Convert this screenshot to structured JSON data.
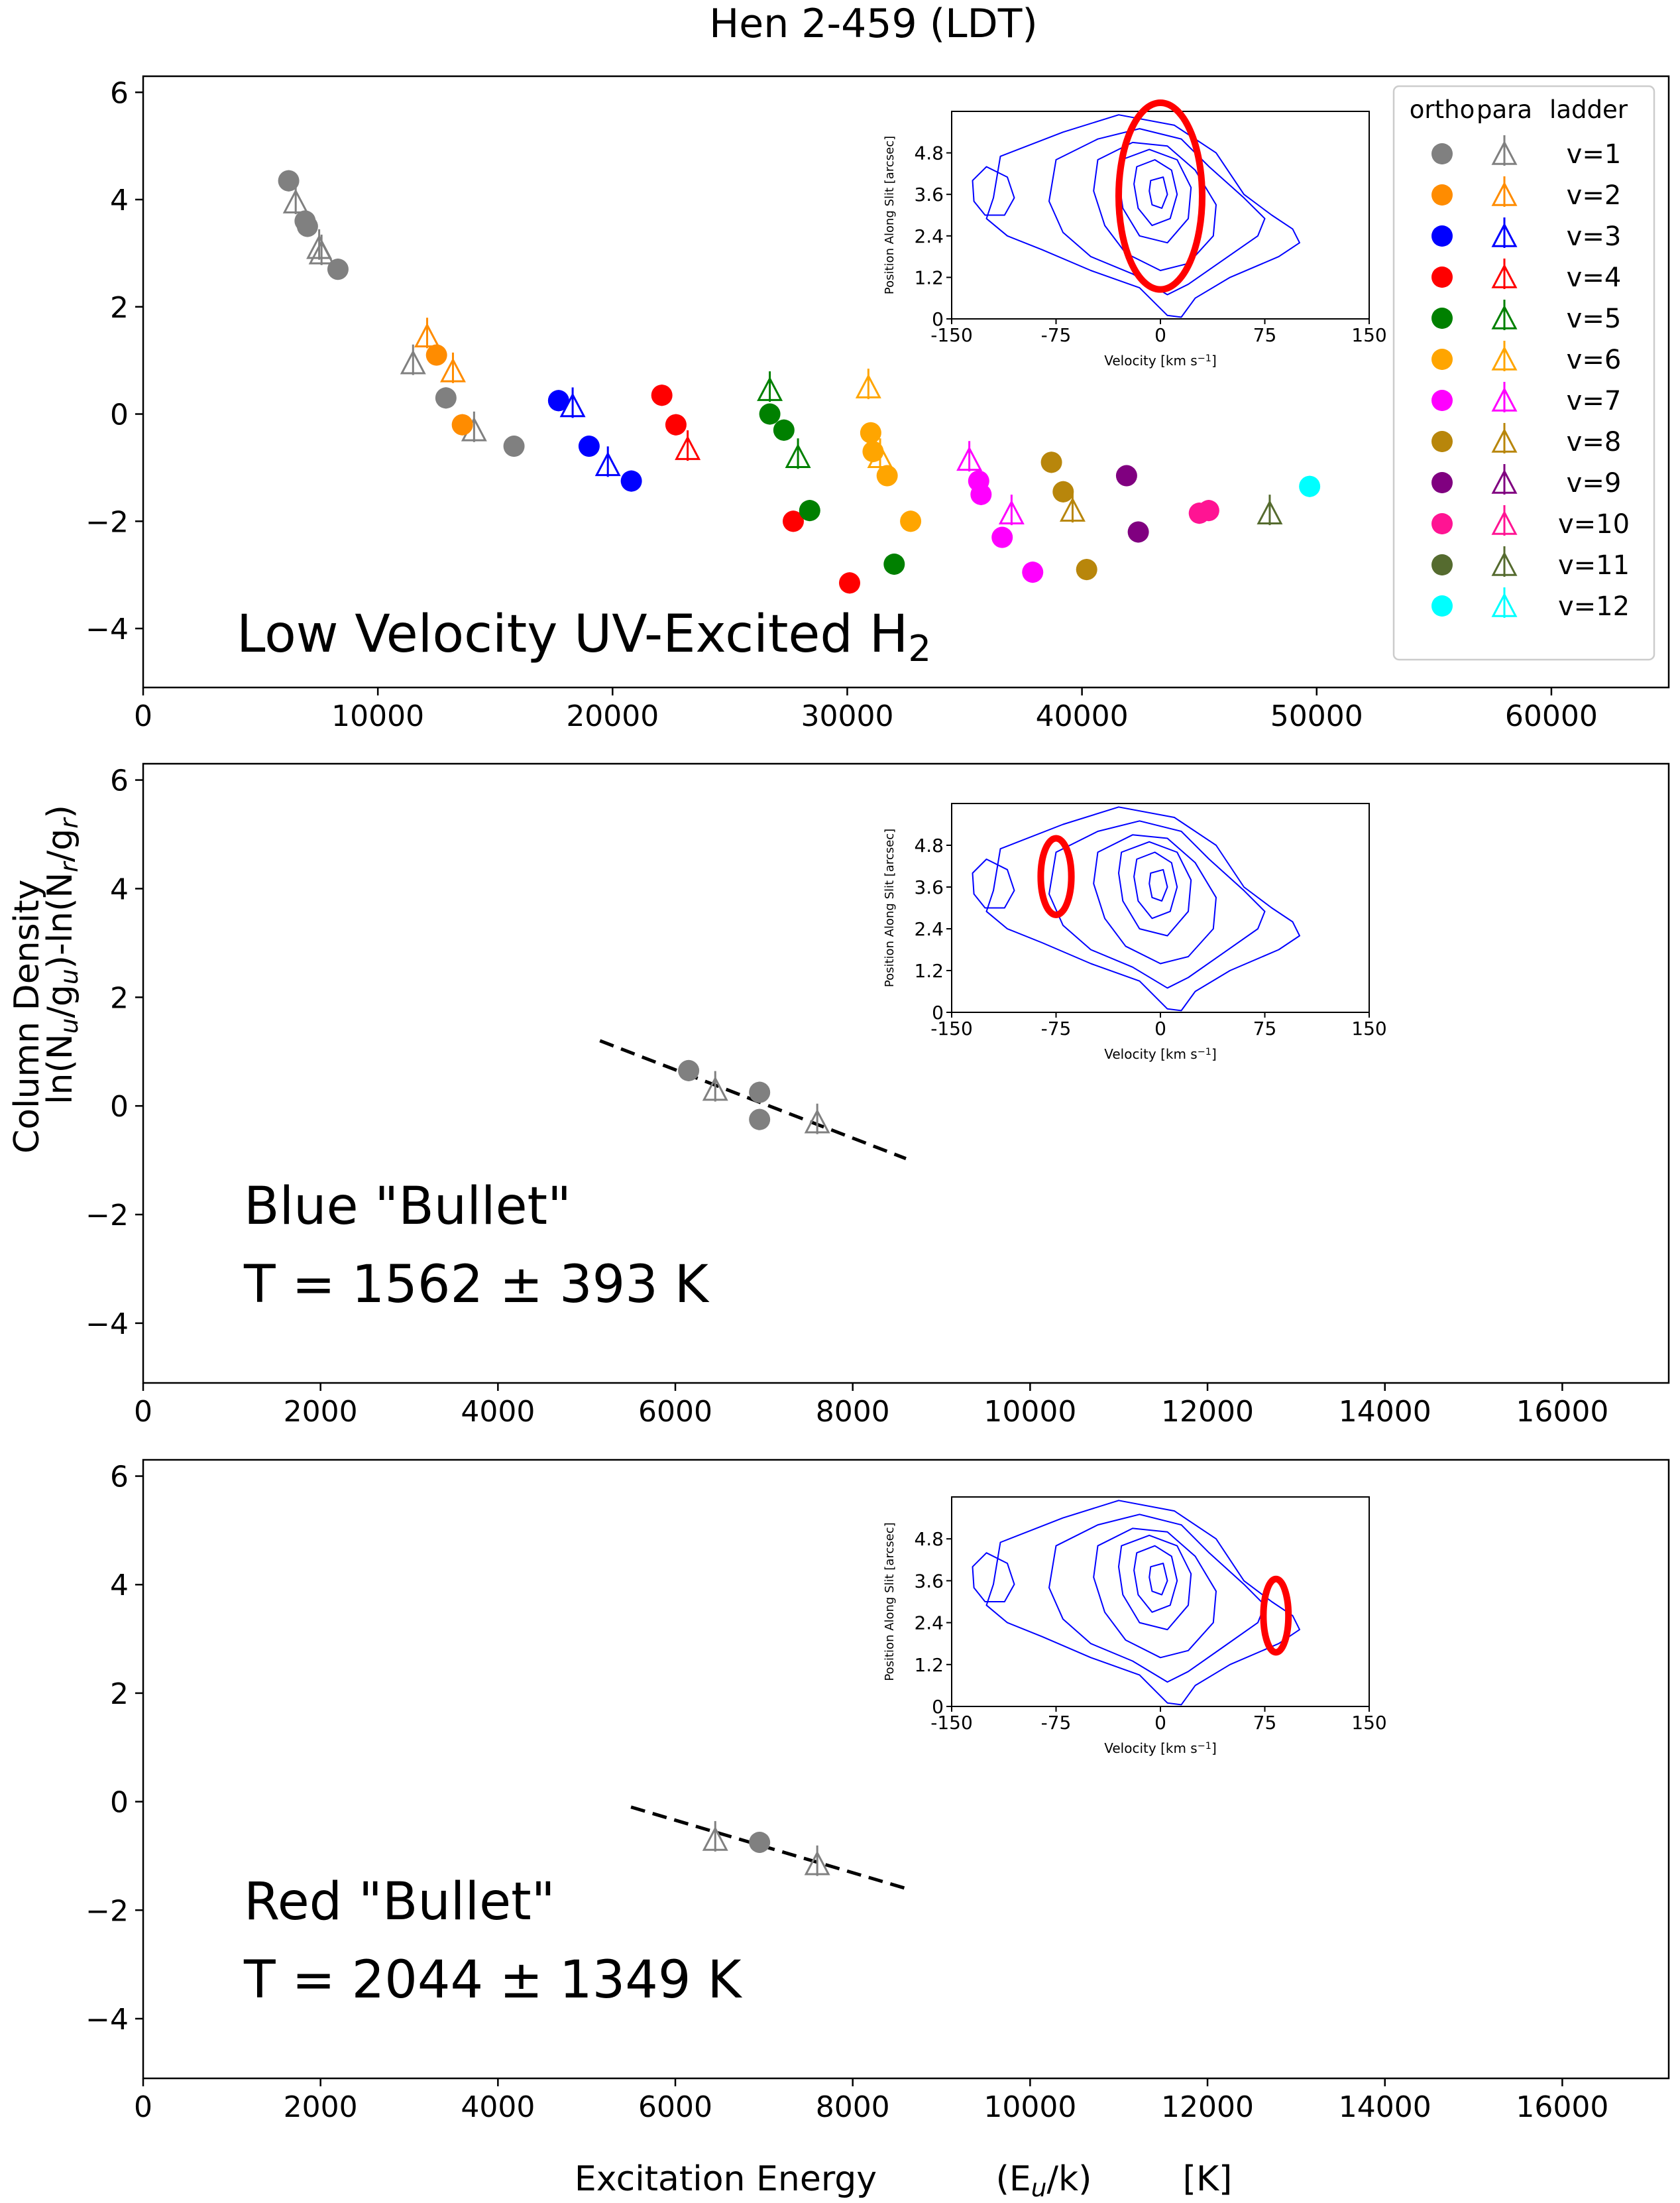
{
  "figure": {
    "title": "Hen 2-459 (LDT)",
    "ylabel_line1": "Column Density",
    "ylabel_line2": "ln(N_u/g_u)-ln(N_r/g_r)",
    "xlabel": "Excitation Energy",
    "xlabel_units": "(E_u/k)",
    "xlabel_unit_k": "[K]"
  },
  "colors": {
    "v1": "#808080",
    "v2": "#ff8c00",
    "v3": "#0000ff",
    "v4": "#ff0000",
    "v5": "#008000",
    "v6": "#ffa500",
    "v7": "#ff00ff",
    "v8": "#b8860b",
    "v9": "#800080",
    "v10": "#ff1493",
    "v11": "#556b2f",
    "v12": "#00ffff",
    "contour": "#0000ff",
    "ellipse": "#ff0000",
    "fit": "#000000"
  },
  "legend": {
    "headers": [
      "ortho",
      "para",
      "ladder"
    ],
    "entries": [
      {
        "label": "v=1",
        "color": "#808080"
      },
      {
        "label": "v=2",
        "color": "#ff8c00"
      },
      {
        "label": "v=3",
        "color": "#0000ff"
      },
      {
        "label": "v=4",
        "color": "#ff0000"
      },
      {
        "label": "v=5",
        "color": "#008000"
      },
      {
        "label": "v=6",
        "color": "#ffa500"
      },
      {
        "label": "v=7",
        "color": "#ff00ff"
      },
      {
        "label": "v=8",
        "color": "#b8860b"
      },
      {
        "label": "v=9",
        "color": "#800080"
      },
      {
        "label": "v=10",
        "color": "#ff1493"
      },
      {
        "label": "v=11",
        "color": "#556b2f"
      },
      {
        "label": "v=12",
        "color": "#00ffff"
      }
    ]
  },
  "inset": {
    "xlabel": "Velocity [km s^-1]",
    "ylabel": "Position Along Slit [arcsec]",
    "xticks": [
      -150,
      -75,
      0,
      75,
      150
    ],
    "xtick_labels": [
      "-150",
      "-75",
      "0",
      "75",
      "150"
    ],
    "yticks": [
      0,
      1.2,
      2.4,
      3.6,
      4.8
    ],
    "ytick_labels": [
      "0",
      "1.2",
      "2.4",
      "3.6",
      "4.8"
    ],
    "xlim": [
      -150,
      150
    ],
    "ylim": [
      0,
      6.0
    ]
  },
  "chart_data": [
    {
      "type": "scatter",
      "panel": "top",
      "annotation": "Low Velocity UV-Excited H2",
      "xlim": [
        0,
        65000
      ],
      "ylim": [
        -5.1,
        6.3
      ],
      "xticks": [
        0,
        10000,
        20000,
        30000,
        40000,
        50000,
        60000
      ],
      "xtick_labels": [
        "0",
        "10000",
        "20000",
        "30000",
        "40000",
        "50000",
        "60000"
      ],
      "yticks": [
        -4,
        -2,
        0,
        2,
        4,
        6
      ],
      "ytick_labels": [
        "−4",
        "−2",
        "0",
        "2",
        "4",
        "6"
      ],
      "ellipse": {
        "vel": 0,
        "pos": 3.55,
        "vel_radius": 30,
        "pos_radius": 2.7
      },
      "points": [
        {
          "x": 6200,
          "y": 4.35,
          "v": 1,
          "kind": "ortho"
        },
        {
          "x": 6500,
          "y": 3.95,
          "v": 1,
          "kind": "para"
        },
        {
          "x": 6900,
          "y": 3.6,
          "v": 1,
          "kind": "ortho"
        },
        {
          "x": 7000,
          "y": 3.5,
          "v": 1,
          "kind": "ortho"
        },
        {
          "x": 7500,
          "y": 3.1,
          "v": 1,
          "kind": "para"
        },
        {
          "x": 7600,
          "y": 3.0,
          "v": 1,
          "kind": "para"
        },
        {
          "x": 8300,
          "y": 2.7,
          "v": 1,
          "kind": "ortho"
        },
        {
          "x": 11500,
          "y": 0.95,
          "v": 1,
          "kind": "para"
        },
        {
          "x": 12900,
          "y": 0.3,
          "v": 1,
          "kind": "ortho"
        },
        {
          "x": 14100,
          "y": -0.3,
          "v": 1,
          "kind": "para"
        },
        {
          "x": 15800,
          "y": -0.6,
          "v": 1,
          "kind": "ortho"
        },
        {
          "x": 12100,
          "y": 1.45,
          "v": 2,
          "kind": "para"
        },
        {
          "x": 12500,
          "y": 1.1,
          "v": 2,
          "kind": "ortho"
        },
        {
          "x": 13200,
          "y": 0.8,
          "v": 2,
          "kind": "para"
        },
        {
          "x": 13600,
          "y": -0.2,
          "v": 2,
          "kind": "ortho"
        },
        {
          "x": 17700,
          "y": 0.25,
          "v": 3,
          "kind": "ortho"
        },
        {
          "x": 18300,
          "y": 0.15,
          "v": 3,
          "kind": "para"
        },
        {
          "x": 19000,
          "y": -0.6,
          "v": 3,
          "kind": "ortho"
        },
        {
          "x": 19800,
          "y": -0.95,
          "v": 3,
          "kind": "para"
        },
        {
          "x": 20800,
          "y": -1.25,
          "v": 3,
          "kind": "ortho"
        },
        {
          "x": 22100,
          "y": 0.35,
          "v": 4,
          "kind": "ortho"
        },
        {
          "x": 22700,
          "y": -0.2,
          "v": 4,
          "kind": "ortho"
        },
        {
          "x": 23200,
          "y": -0.65,
          "v": 4,
          "kind": "para"
        },
        {
          "x": 27700,
          "y": -2.0,
          "v": 4,
          "kind": "ortho"
        },
        {
          "x": 30100,
          "y": -3.15,
          "v": 4,
          "kind": "ortho"
        },
        {
          "x": 26700,
          "y": 0.45,
          "v": 5,
          "kind": "para"
        },
        {
          "x": 26700,
          "y": 0.0,
          "v": 5,
          "kind": "ortho"
        },
        {
          "x": 27300,
          "y": -0.3,
          "v": 5,
          "kind": "ortho"
        },
        {
          "x": 27900,
          "y": -0.8,
          "v": 5,
          "kind": "para"
        },
        {
          "x": 28400,
          "y": -1.8,
          "v": 5,
          "kind": "ortho"
        },
        {
          "x": 32000,
          "y": -2.8,
          "v": 5,
          "kind": "ortho"
        },
        {
          "x": 30900,
          "y": 0.5,
          "v": 6,
          "kind": "para"
        },
        {
          "x": 31000,
          "y": -0.35,
          "v": 6,
          "kind": "ortho"
        },
        {
          "x": 31100,
          "y": -0.7,
          "v": 6,
          "kind": "ortho"
        },
        {
          "x": 31400,
          "y": -0.8,
          "v": 6,
          "kind": "para"
        },
        {
          "x": 31700,
          "y": -1.15,
          "v": 6,
          "kind": "ortho"
        },
        {
          "x": 32700,
          "y": -2.0,
          "v": 6,
          "kind": "ortho"
        },
        {
          "x": 35200,
          "y": -0.85,
          "v": 7,
          "kind": "para"
        },
        {
          "x": 35600,
          "y": -1.25,
          "v": 7,
          "kind": "ortho"
        },
        {
          "x": 35700,
          "y": -1.5,
          "v": 7,
          "kind": "ortho"
        },
        {
          "x": 36600,
          "y": -2.3,
          "v": 7,
          "kind": "ortho"
        },
        {
          "x": 37000,
          "y": -1.85,
          "v": 7,
          "kind": "para"
        },
        {
          "x": 37900,
          "y": -2.95,
          "v": 7,
          "kind": "ortho"
        },
        {
          "x": 38700,
          "y": -0.9,
          "v": 8,
          "kind": "ortho"
        },
        {
          "x": 39200,
          "y": -1.45,
          "v": 8,
          "kind": "ortho"
        },
        {
          "x": 39600,
          "y": -1.8,
          "v": 8,
          "kind": "para"
        },
        {
          "x": 40200,
          "y": -2.9,
          "v": 8,
          "kind": "ortho"
        },
        {
          "x": 41900,
          "y": -1.15,
          "v": 9,
          "kind": "ortho"
        },
        {
          "x": 42400,
          "y": -2.2,
          "v": 9,
          "kind": "ortho"
        },
        {
          "x": 45000,
          "y": -1.85,
          "v": 10,
          "kind": "ortho"
        },
        {
          "x": 45400,
          "y": -1.8,
          "v": 10,
          "kind": "ortho"
        },
        {
          "x": 48000,
          "y": -1.85,
          "v": 11,
          "kind": "para"
        },
        {
          "x": 49700,
          "y": -1.35,
          "v": 12,
          "kind": "ortho"
        }
      ]
    },
    {
      "type": "scatter",
      "panel": "middle",
      "annotation_line1": "Blue \"Bullet\"",
      "annotation_line2": "T = 1562 ± 393 K",
      "xlim": [
        0,
        17200
      ],
      "ylim": [
        -5.1,
        6.3
      ],
      "xticks": [
        0,
        2000,
        4000,
        6000,
        8000,
        10000,
        12000,
        14000,
        16000
      ],
      "xtick_labels": [
        "0",
        "2000",
        "4000",
        "6000",
        "8000",
        "10000",
        "12000",
        "14000",
        "16000"
      ],
      "yticks": [
        -4,
        -2,
        0,
        2,
        4,
        6
      ],
      "ytick_labels": [
        "−4",
        "−2",
        "0",
        "2",
        "4",
        "6"
      ],
      "ellipse": {
        "vel": -75,
        "pos": 3.9,
        "vel_radius": 11,
        "pos_radius": 1.1
      },
      "fit": {
        "x": [
          5150,
          8600
        ],
        "y": [
          1.2,
          -0.97
        ]
      },
      "points": [
        {
          "x": 6150,
          "y": 0.65,
          "v": 1,
          "kind": "ortho"
        },
        {
          "x": 6450,
          "y": 0.3,
          "v": 1,
          "kind": "para"
        },
        {
          "x": 6950,
          "y": 0.25,
          "v": 1,
          "kind": "ortho"
        },
        {
          "x": 6950,
          "y": -0.25,
          "v": 1,
          "kind": "ortho"
        },
        {
          "x": 7600,
          "y": -0.3,
          "v": 1,
          "kind": "para"
        }
      ]
    },
    {
      "type": "scatter",
      "panel": "bottom",
      "annotation_line1": "Red \"Bullet\"",
      "annotation_line2": "T = 2044 ± 1349 K",
      "xlim": [
        0,
        17200
      ],
      "ylim": [
        -5.1,
        6.3
      ],
      "xticks": [
        0,
        2000,
        4000,
        6000,
        8000,
        10000,
        12000,
        14000,
        16000
      ],
      "xtick_labels": [
        "0",
        "2000",
        "4000",
        "6000",
        "8000",
        "10000",
        "12000",
        "14000",
        "16000"
      ],
      "yticks": [
        -4,
        -2,
        0,
        2,
        4,
        6
      ],
      "ytick_labels": [
        "−4",
        "−2",
        "0",
        "2",
        "4",
        "6"
      ],
      "ellipse": {
        "vel": 83,
        "pos": 2.6,
        "vel_radius": 9,
        "pos_radius": 1.05
      },
      "fit": {
        "x": [
          5500,
          8600
        ],
        "y": [
          -0.1,
          -1.6
        ]
      },
      "points": [
        {
          "x": 6450,
          "y": -0.7,
          "v": 1,
          "kind": "para"
        },
        {
          "x": 6950,
          "y": -0.75,
          "v": 1,
          "kind": "ortho"
        },
        {
          "x": 7600,
          "y": -1.15,
          "v": 1,
          "kind": "para"
        }
      ]
    }
  ]
}
